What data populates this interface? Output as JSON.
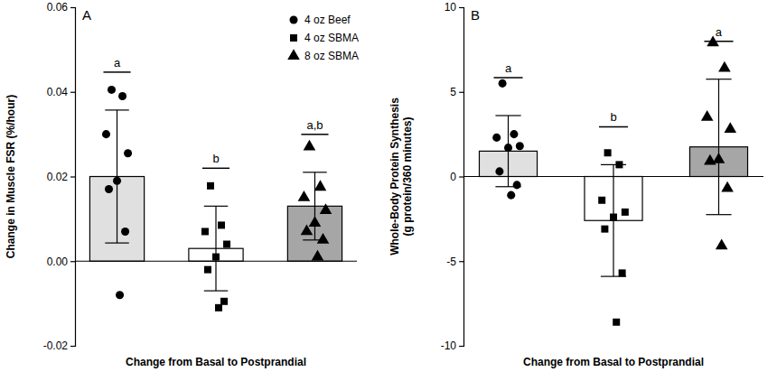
{
  "chart_data": [
    {
      "type": "bar",
      "title": "A",
      "x_label": "Change from Basal to Postprandial",
      "y_label": "Change in Muscle FSR (%/hour)",
      "categories": [
        null
      ],
      "ylim": [
        -0.02,
        0.06
      ],
      "yticks": [
        {
          "value": -0.02,
          "label": "-0.02"
        },
        {
          "value": 0,
          "label": "0.00"
        },
        {
          "value": 0.02,
          "label": "0.02"
        },
        {
          "value": 0.04,
          "label": "0.04"
        },
        {
          "value": 0.06,
          "label": "0.06"
        }
      ],
      "tick_labels": "y",
      "legend": "top-right",
      "grid": false,
      "series": [
        {
          "name": "4 oz Beef",
          "color": "#e0e0e0",
          "marker": "circle",
          "values": [
            0.02
          ],
          "error": [
            0.0157
          ],
          "points": [
            0.0405,
            0.039,
            0.03,
            0.0255,
            0.019,
            0.017,
            0.007,
            -0.008
          ],
          "annotation": "a"
        },
        {
          "name": "4 oz SBMA",
          "color": "#ffffff",
          "marker": "square",
          "values": [
            0.003
          ],
          "error": [
            0.01
          ],
          "points": [
            0.0178,
            0.0085,
            0.007,
            0.004,
            0.001,
            -0.002,
            -0.0095,
            -0.011
          ],
          "annotation": "b"
        },
        {
          "name": "8 oz SBMA",
          "color": "#a6a6a6",
          "marker": "triangle",
          "values": [
            0.013
          ],
          "error": [
            0.008
          ],
          "points": [
            0.027,
            0.0175,
            0.015,
            0.012,
            0.009,
            0.007,
            0.005,
            0.001
          ],
          "annotation": "a,b"
        }
      ]
    },
    {
      "type": "bar",
      "title": "B",
      "x_label": "Change from Basal to Postprandial",
      "y_label": "Whole-Body Protein Synthesis\n(g protein/360 minutes)",
      "categories": [
        null
      ],
      "ylim": [
        -10,
        10
      ],
      "yticks": [
        -10,
        -5,
        0,
        5,
        10
      ],
      "tick_labels": "y",
      "grid": false,
      "series": [
        {
          "color": "#e0e0e0",
          "marker": "circle",
          "values": [
            1.5
          ],
          "error": [
            2.1
          ],
          "points": [
            5.5,
            2.5,
            2.3,
            1.8,
            1.7,
            0.3,
            -0.5,
            -1.1
          ],
          "annotation": "a"
        },
        {
          "color": "#ffffff",
          "marker": "square",
          "values": [
            -2.6
          ],
          "error": [
            3.3
          ],
          "points": [
            1.4,
            0.7,
            -1.4,
            -2.1,
            -2.4,
            -3.1,
            -5.7,
            -8.6
          ],
          "annotation": "b"
        },
        {
          "color": "#a6a6a6",
          "marker": "triangle",
          "values": [
            1.75
          ],
          "error": [
            4.0
          ],
          "points": [
            7.9,
            6.4,
            3.5,
            2.8,
            1.0,
            0.9,
            -0.7,
            -4.1
          ],
          "annotation": "a"
        }
      ]
    }
  ]
}
